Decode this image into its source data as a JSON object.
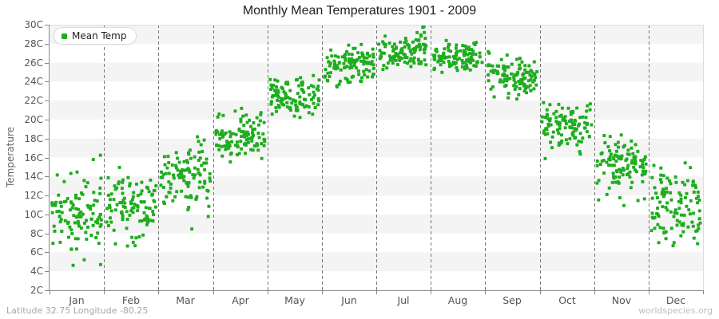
{
  "header": {
    "title": "Monthly Mean Temperatures 1901 - 2009"
  },
  "legend": {
    "label": "Mean Temp"
  },
  "footer": {
    "left": "Latitude 32.75 Longitude -80.25",
    "right": "worldspecies.org"
  },
  "chart_data": {
    "type": "scatter",
    "title": "Monthly Mean Temperatures 1901 - 2009",
    "xlabel": "",
    "ylabel": "Temperature",
    "ylim": [
      2,
      30
    ],
    "y_tick_step": 2,
    "y_tick_suffix": "C",
    "categories": [
      "Jan",
      "Feb",
      "Mar",
      "Apr",
      "May",
      "Jun",
      "Jul",
      "Aug",
      "Sep",
      "Oct",
      "Nov",
      "Dec"
    ],
    "legend_position": "top-left",
    "grid": {
      "vertical_dashed": true,
      "horizontal_lines": false,
      "alternating_bands": true
    },
    "band_colors": [
      "#f4f4f4",
      "#ffffff"
    ],
    "marker_color": "#1fad1f",
    "marker_shape": "square",
    "points_per_month": 109,
    "year_range": [
      1901,
      2009
    ],
    "seed": 7,
    "series": [
      {
        "name": "Mean Temp",
        "monthly_distribution": [
          {
            "month": "Jan",
            "mean": 9.9,
            "sd": 2.3,
            "min": 3.8,
            "max": 17.0
          },
          {
            "month": "Feb",
            "mean": 10.9,
            "sd": 2.0,
            "min": 5.8,
            "max": 16.3
          },
          {
            "month": "Mar",
            "mean": 14.3,
            "sd": 1.8,
            "min": 8.4,
            "max": 18.9
          },
          {
            "month": "Apr",
            "mean": 18.2,
            "sd": 1.2,
            "min": 15.5,
            "max": 21.3
          },
          {
            "month": "May",
            "mean": 22.4,
            "sd": 1.1,
            "min": 19.8,
            "max": 25.3
          },
          {
            "month": "Jun",
            "mean": 25.7,
            "sd": 1.0,
            "min": 21.0,
            "max": 28.3
          },
          {
            "month": "Jul",
            "mean": 27.2,
            "sd": 0.9,
            "min": 24.8,
            "max": 29.9
          },
          {
            "month": "Aug",
            "mean": 26.7,
            "sd": 0.7,
            "min": 24.5,
            "max": 28.6
          },
          {
            "month": "Sep",
            "mean": 24.6,
            "sd": 1.1,
            "min": 21.3,
            "max": 27.5
          },
          {
            "month": "Oct",
            "mean": 19.2,
            "sd": 1.3,
            "min": 15.7,
            "max": 22.0
          },
          {
            "month": "Nov",
            "mean": 15.1,
            "sd": 1.6,
            "min": 10.4,
            "max": 19.8
          },
          {
            "month": "Dec",
            "mean": 10.8,
            "sd": 2.1,
            "min": 4.3,
            "max": 16.2
          }
        ]
      }
    ]
  }
}
